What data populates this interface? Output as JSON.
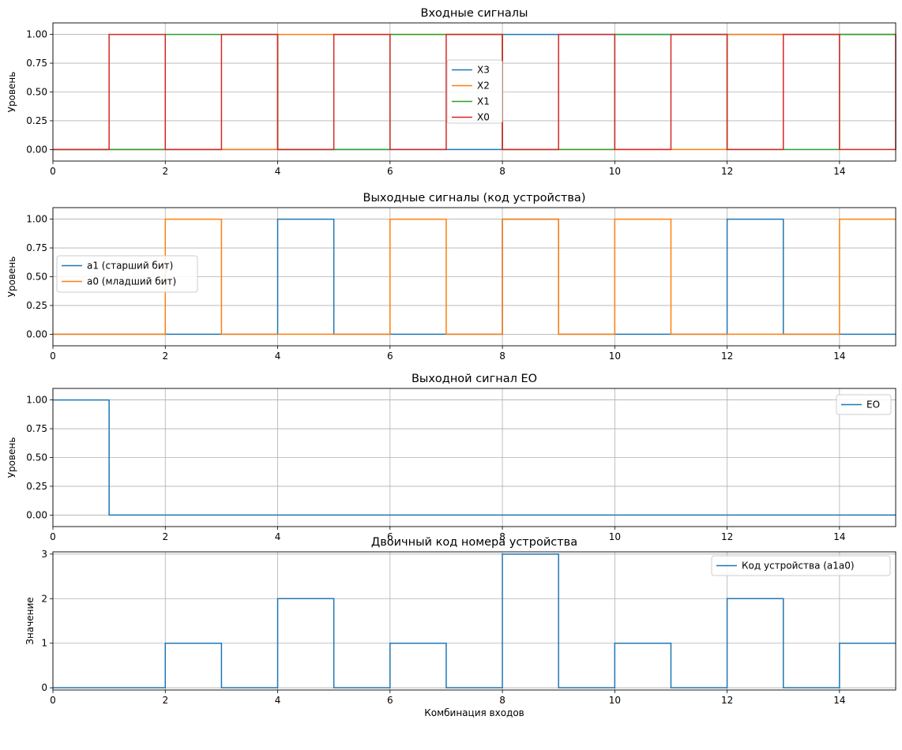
{
  "chart_data": [
    {
      "type": "line",
      "step": "post",
      "title": "Входные сигналы",
      "ylabel": "Уровень",
      "xlabel": "",
      "xlim": [
        0,
        15
      ],
      "ylim": [
        -0.1,
        1.1
      ],
      "xticks": [
        "0",
        "2",
        "4",
        "6",
        "8",
        "10",
        "12",
        "14"
      ],
      "yticks": [
        "0.00",
        "0.25",
        "0.50",
        "0.75",
        "1.00"
      ],
      "grid": true,
      "legend": "center",
      "x": [
        0,
        1,
        2,
        3,
        4,
        5,
        6,
        7,
        8,
        9,
        10,
        11,
        12,
        13,
        14,
        15
      ],
      "series": [
        {
          "name": "X3",
          "color": "#1f77b4",
          "values": [
            0,
            0,
            0,
            0,
            0,
            0,
            0,
            0,
            1,
            1,
            1,
            1,
            1,
            1,
            1,
            1
          ]
        },
        {
          "name": "X2",
          "color": "#ff7f0e",
          "values": [
            0,
            0,
            0,
            0,
            1,
            1,
            1,
            1,
            0,
            0,
            0,
            0,
            1,
            1,
            1,
            1
          ]
        },
        {
          "name": "X1",
          "color": "#2ca02c",
          "values": [
            0,
            0,
            1,
            1,
            0,
            0,
            1,
            1,
            0,
            0,
            1,
            1,
            0,
            0,
            1,
            1
          ]
        },
        {
          "name": "X0",
          "color": "#d62728",
          "values": [
            0,
            1,
            0,
            1,
            0,
            1,
            0,
            1,
            0,
            1,
            0,
            1,
            0,
            1,
            0,
            1
          ]
        }
      ]
    },
    {
      "type": "line",
      "step": "post",
      "title": "Выходные сигналы (код устройства)",
      "ylabel": "Уровень",
      "xlabel": "",
      "xlim": [
        0,
        15
      ],
      "ylim": [
        -0.1,
        1.1
      ],
      "xticks": [
        "0",
        "2",
        "4",
        "6",
        "8",
        "10",
        "12",
        "14"
      ],
      "yticks": [
        "0.00",
        "0.25",
        "0.50",
        "0.75",
        "1.00"
      ],
      "grid": true,
      "legend": "center-left",
      "x": [
        0,
        1,
        2,
        3,
        4,
        5,
        6,
        7,
        8,
        9,
        10,
        11,
        12,
        13,
        14,
        15
      ],
      "series": [
        {
          "name": "a1 (старший бит)",
          "color": "#1f77b4",
          "values": [
            0,
            0,
            0,
            0,
            1,
            0,
            0,
            0,
            1,
            0,
            0,
            0,
            1,
            0,
            0,
            0
          ]
        },
        {
          "name": "a0 (младший бит)",
          "color": "#ff7f0e",
          "values": [
            0,
            0,
            1,
            0,
            0,
            0,
            1,
            0,
            1,
            0,
            1,
            0,
            0,
            0,
            1,
            1
          ]
        }
      ]
    },
    {
      "type": "line",
      "step": "post",
      "title": "Выходной сигнал EO",
      "ylabel": "Уровень",
      "xlabel": "",
      "xlim": [
        0,
        15
      ],
      "ylim": [
        -0.1,
        1.1
      ],
      "xticks": [
        "0",
        "2",
        "4",
        "6",
        "8",
        "10",
        "12",
        "14"
      ],
      "yticks": [
        "0.00",
        "0.25",
        "0.50",
        "0.75",
        "1.00"
      ],
      "grid": true,
      "legend": "top-right",
      "x": [
        0,
        1,
        2,
        3,
        4,
        5,
        6,
        7,
        8,
        9,
        10,
        11,
        12,
        13,
        14,
        15
      ],
      "series": [
        {
          "name": "EO",
          "color": "#1f77b4",
          "values": [
            1,
            0,
            0,
            0,
            0,
            0,
            0,
            0,
            0,
            0,
            0,
            0,
            0,
            0,
            0,
            0
          ]
        }
      ]
    },
    {
      "type": "line",
      "step": "post",
      "title": "Двоичный код номера устройства",
      "ylabel": "Значение",
      "xlabel": "Комбинация входов",
      "xlim": [
        0,
        15
      ],
      "ylim": [
        -0.05,
        3.05
      ],
      "xticks": [
        "0",
        "2",
        "4",
        "6",
        "8",
        "10",
        "12",
        "14"
      ],
      "yticks": [
        "0",
        "1",
        "2",
        "3"
      ],
      "grid": true,
      "legend": "top-right",
      "x": [
        0,
        1,
        2,
        3,
        4,
        5,
        6,
        7,
        8,
        9,
        10,
        11,
        12,
        13,
        14,
        15
      ],
      "series": [
        {
          "name": "Код устройства (a1a0)",
          "color": "#1f77b4",
          "values": [
            0,
            0,
            1,
            0,
            2,
            0,
            1,
            0,
            3,
            0,
            1,
            0,
            2,
            0,
            1,
            1
          ]
        }
      ]
    }
  ]
}
